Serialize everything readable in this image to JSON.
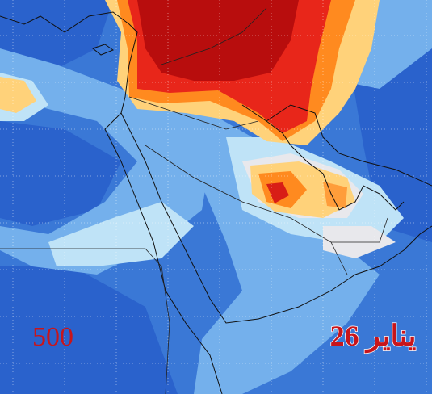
{
  "map": {
    "level_label": "500",
    "date_label": "26 يناير"
  }
}
